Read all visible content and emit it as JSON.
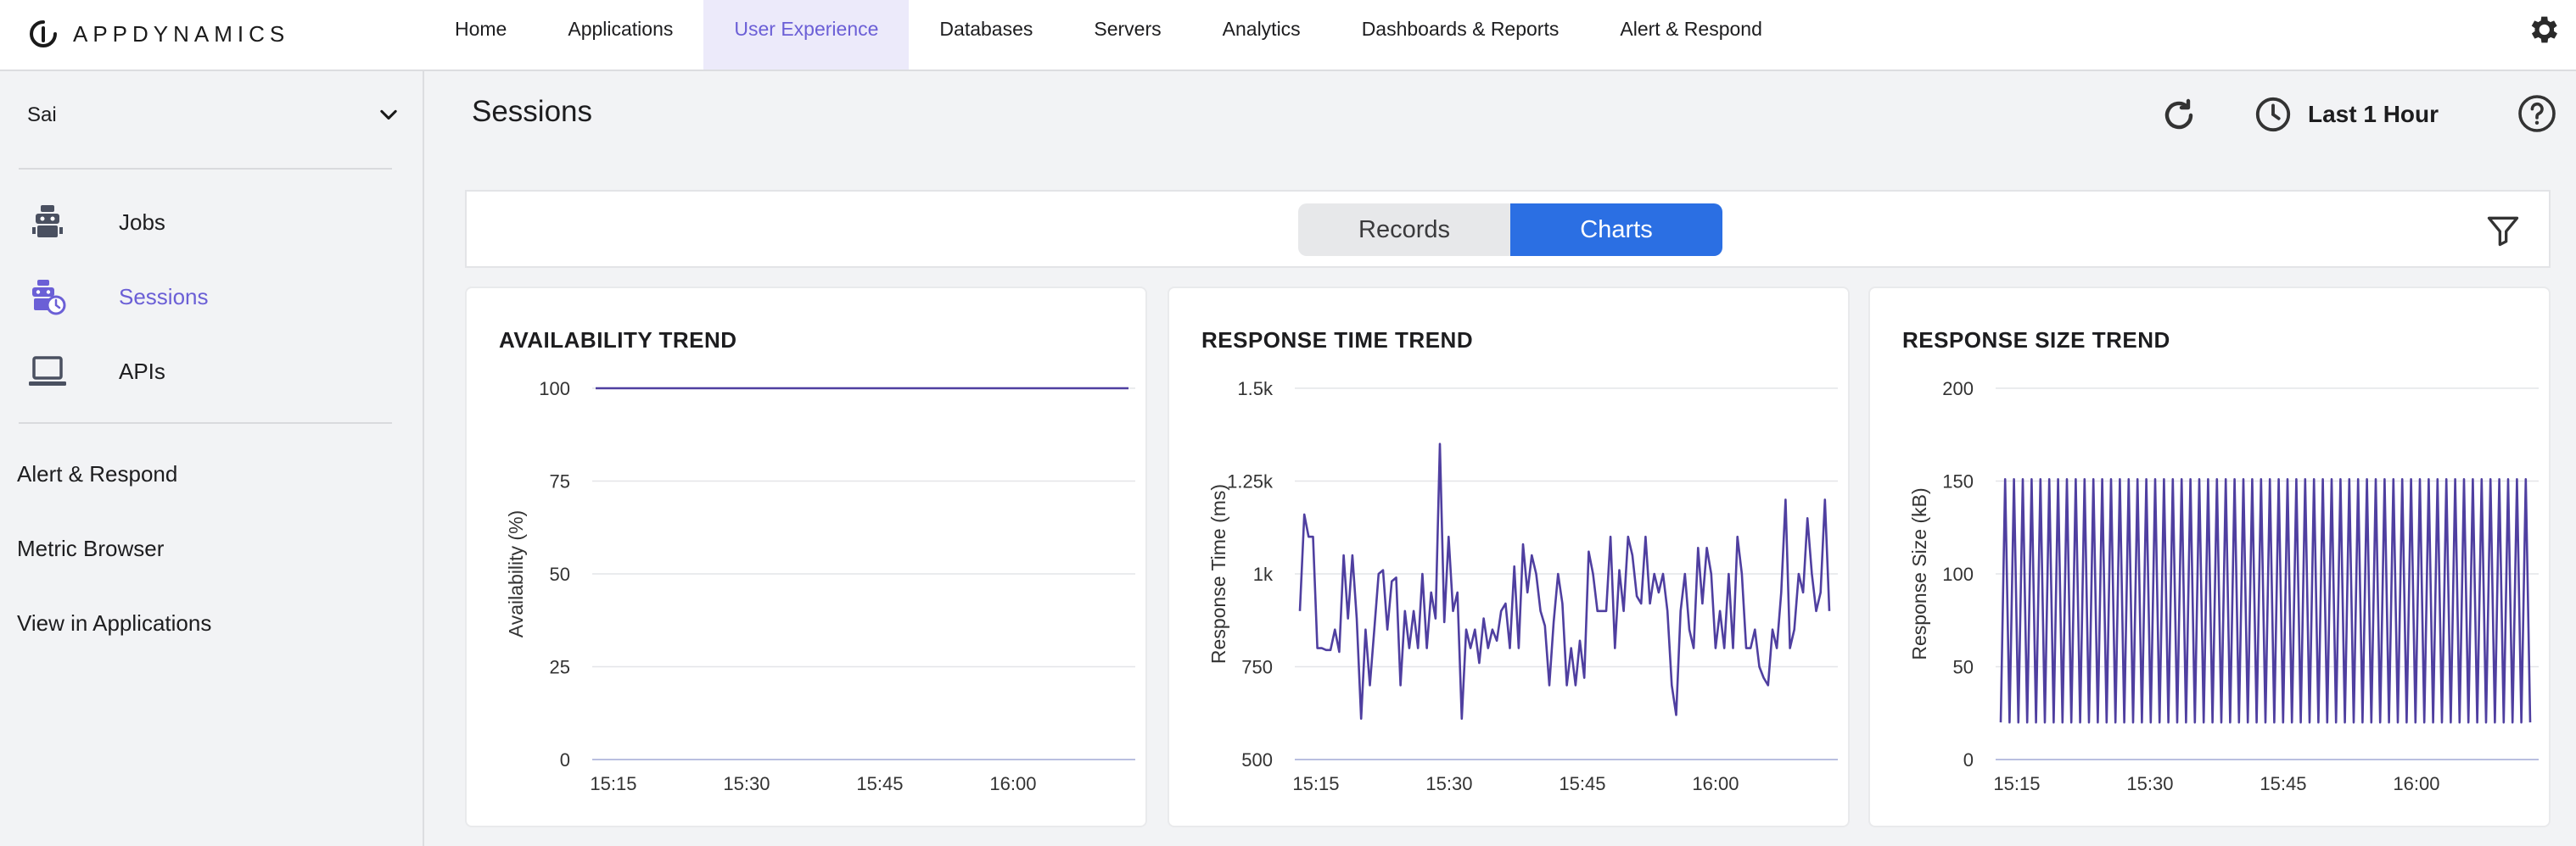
{
  "header": {
    "logo_text": "APPDYNAMICS",
    "nav": [
      "Home",
      "Applications",
      "User Experience",
      "Databases",
      "Servers",
      "Analytics",
      "Dashboards & Reports",
      "Alert & Respond"
    ],
    "active_nav": "User Experience"
  },
  "sidebar": {
    "app_name": "Sai",
    "items": [
      {
        "label": "Jobs",
        "icon": "robot-icon"
      },
      {
        "label": "Sessions",
        "icon": "robot-clock-icon"
      },
      {
        "label": "APIs",
        "icon": "laptop-icon"
      }
    ],
    "active_item": "Sessions",
    "links": [
      "Alert & Respond",
      "Metric Browser",
      "View in Applications"
    ]
  },
  "main": {
    "title": "Sessions",
    "time_range": "Last 1 Hour",
    "tabs": [
      "Records",
      "Charts"
    ],
    "active_tab": "Charts"
  },
  "colors": {
    "accent": "#6b5fd6",
    "series": "#4f3fa0",
    "tab_active": "#2b6fe3"
  },
  "chart_data": [
    {
      "type": "line",
      "title": "AVAILABILITY TREND",
      "ylabel": "Availability (%)",
      "xlabel": "",
      "ylim": [
        0,
        100
      ],
      "yticks": [
        "0",
        "25",
        "50",
        "75",
        "100"
      ],
      "yvals": [
        0,
        25,
        50,
        75,
        100
      ],
      "xticks": [
        "15:15",
        "15:30",
        "15:45",
        "16:00"
      ],
      "xtick_minutes": [
        15,
        30,
        45,
        60
      ],
      "xlim_minutes": [
        13,
        73
      ],
      "grid": true,
      "series": [
        {
          "x_minutes": [
            13,
            73
          ],
          "values": [
            100,
            100
          ]
        }
      ]
    },
    {
      "type": "line",
      "title": "RESPONSE TIME TREND",
      "ylabel": "Response Time (ms)",
      "xlabel": "",
      "ylim": [
        500,
        1500
      ],
      "yticks": [
        "500",
        "750",
        "1k",
        "1.25k",
        "1.5k"
      ],
      "yvals": [
        500,
        750,
        1000,
        1250,
        1500
      ],
      "xticks": [
        "15:15",
        "15:30",
        "15:45",
        "16:00"
      ],
      "xtick_minutes": [
        15,
        30,
        45,
        60
      ],
      "xlim_minutes": [
        13,
        73
      ],
      "grid": true,
      "series": [
        {
          "values": [
            900,
            1160,
            1100,
            1100,
            800,
            800,
            795,
            795,
            850,
            790,
            1050,
            880,
            1050,
            880,
            610,
            850,
            700,
            850,
            1000,
            1010,
            850,
            980,
            990,
            700,
            900,
            800,
            900,
            800,
            1000,
            800,
            950,
            880,
            1350,
            870,
            1100,
            900,
            950,
            610,
            850,
            800,
            850,
            760,
            880,
            800,
            850,
            820,
            900,
            920,
            800,
            1020,
            800,
            1080,
            950,
            1050,
            1000,
            900,
            860,
            700,
            870,
            1000,
            920,
            700,
            800,
            700,
            820,
            720,
            1060,
            1000,
            900,
            900,
            900,
            1100,
            800,
            1010,
            900,
            1100,
            1050,
            940,
            920,
            1100,
            920,
            1000,
            950,
            1000,
            900,
            700,
            620,
            900,
            1000,
            850,
            800,
            1070,
            920,
            1070,
            1000,
            800,
            900,
            800,
            1000,
            800,
            1100,
            1000,
            800,
            800,
            850,
            750,
            720,
            700,
            850,
            800,
            950,
            1200,
            800,
            850,
            1000,
            950,
            1150,
            1000,
            900,
            950,
            1200,
            900
          ]
        }
      ]
    },
    {
      "type": "line",
      "title": "RESPONSE SIZE TREND",
      "ylabel": "Response Size (kB)",
      "xlabel": "",
      "ylim": [
        0,
        200
      ],
      "yticks": [
        "0",
        "50",
        "100",
        "150",
        "200"
      ],
      "yvals": [
        0,
        50,
        100,
        150,
        200
      ],
      "xticks": [
        "15:15",
        "15:30",
        "15:45",
        "16:00"
      ],
      "xtick_minutes": [
        15,
        30,
        45,
        60
      ],
      "xlim_minutes": [
        13,
        73
      ],
      "grid": true,
      "series": [
        {
          "low": 20,
          "high": 151,
          "cycles": 60
        }
      ]
    }
  ]
}
